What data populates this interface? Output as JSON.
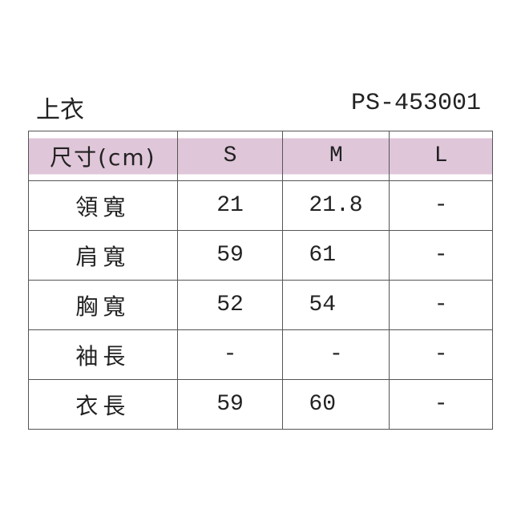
{
  "title": "上衣",
  "code": "PS-453001",
  "header_color": "#dfc6d9",
  "columns": [
    "尺寸(cm)",
    "S",
    "M",
    "L"
  ],
  "rows": [
    {
      "label": "領寬",
      "S": "21",
      "M": "21.8",
      "L": "-"
    },
    {
      "label": "肩寬",
      "S": "59",
      "M": "61",
      "L": "-"
    },
    {
      "label": "胸寬",
      "S": "52",
      "M": "54",
      "L": "-"
    },
    {
      "label": "袖長",
      "S": "-",
      "M": "-",
      "L": "-"
    },
    {
      "label": "衣長",
      "S": "59",
      "M": "60",
      "L": "-"
    }
  ]
}
